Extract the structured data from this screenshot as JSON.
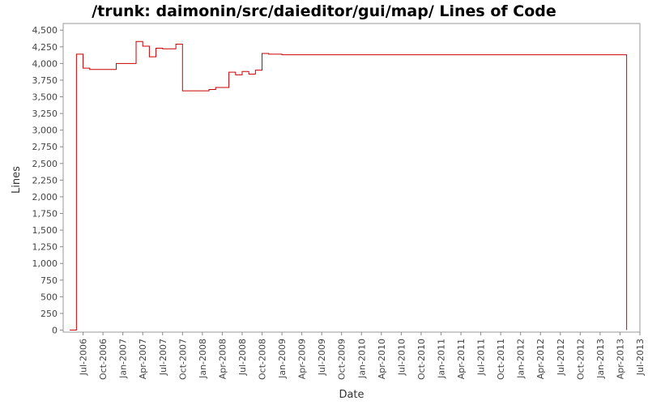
{
  "chart_data": {
    "type": "line",
    "title": "/trunk: daimonin/src/daieditor/gui/map/ Lines of Code",
    "x_label": "Date",
    "y_label": "Lines",
    "color": "#cc0000",
    "step": true,
    "x": [
      "2006-05",
      "2006-06",
      "2006-07",
      "2006-08",
      "2006-12",
      "2007-03",
      "2007-04",
      "2007-05",
      "2007-06",
      "2007-07",
      "2007-09",
      "2007-10",
      "2008-02",
      "2008-03",
      "2008-05",
      "2008-06",
      "2008-07",
      "2008-08",
      "2008-09",
      "2008-10",
      "2008-11",
      "2009-01",
      "2013-05"
    ],
    "values": [
      0,
      4140,
      3930,
      3910,
      4000,
      4330,
      4260,
      4100,
      4230,
      4220,
      4290,
      3590,
      3610,
      3640,
      3870,
      3830,
      3880,
      3840,
      3900,
      4150,
      4140,
      4130,
      0
    ],
    "xlim": [
      "2006-04",
      "2013-07"
    ],
    "xticks": [
      {
        "value": "2006-07",
        "label": "Jul-2006"
      },
      {
        "value": "2006-10",
        "label": "Oct-2006"
      },
      {
        "value": "2007-01",
        "label": "Jan-2007"
      },
      {
        "value": "2007-04",
        "label": "Apr-2007"
      },
      {
        "value": "2007-07",
        "label": "Jul-2007"
      },
      {
        "value": "2007-10",
        "label": "Oct-2007"
      },
      {
        "value": "2008-01",
        "label": "Jan-2008"
      },
      {
        "value": "2008-04",
        "label": "Apr-2008"
      },
      {
        "value": "2008-07",
        "label": "Jul-2008"
      },
      {
        "value": "2008-10",
        "label": "Oct-2008"
      },
      {
        "value": "2009-01",
        "label": "Jan-2009"
      },
      {
        "value": "2009-04",
        "label": "Apr-2009"
      },
      {
        "value": "2009-07",
        "label": "Jul-2009"
      },
      {
        "value": "2009-10",
        "label": "Oct-2009"
      },
      {
        "value": "2010-01",
        "label": "Jan-2010"
      },
      {
        "value": "2010-04",
        "label": "Apr-2010"
      },
      {
        "value": "2010-07",
        "label": "Jul-2010"
      },
      {
        "value": "2010-10",
        "label": "Oct-2010"
      },
      {
        "value": "2011-01",
        "label": "Jan-2011"
      },
      {
        "value": "2011-04",
        "label": "Apr-2011"
      },
      {
        "value": "2011-07",
        "label": "Jul-2011"
      },
      {
        "value": "2011-10",
        "label": "Oct-2011"
      },
      {
        "value": "2012-01",
        "label": "Jan-2012"
      },
      {
        "value": "2012-04",
        "label": "Apr-2012"
      },
      {
        "value": "2012-07",
        "label": "Jul-2012"
      },
      {
        "value": "2012-10",
        "label": "Oct-2012"
      },
      {
        "value": "2013-01",
        "label": "Jan-2013"
      },
      {
        "value": "2013-04",
        "label": "Apr-2013"
      },
      {
        "value": "2013-07",
        "label": "Jul-2013"
      }
    ],
    "ylim": [
      -30,
      4600
    ],
    "yticks": [
      0,
      250,
      500,
      750,
      {
        "value": 1000,
        "label": "1,000"
      },
      {
        "value": 1250,
        "label": "1,250"
      },
      {
        "value": 1500,
        "label": "1,500"
      },
      {
        "value": 1750,
        "label": "1,750"
      },
      {
        "value": 2000,
        "label": "2,000"
      },
      {
        "value": 2250,
        "label": "2,250"
      },
      {
        "value": 2500,
        "label": "2,500"
      },
      {
        "value": 2750,
        "label": "2,750"
      },
      {
        "value": 3000,
        "label": "3,000"
      },
      {
        "value": 3250,
        "label": "3,250"
      },
      {
        "value": 3500,
        "label": "3,500"
      },
      {
        "value": 3750,
        "label": "3,750"
      },
      {
        "value": 4000,
        "label": "4,000"
      },
      {
        "value": 4250,
        "label": "4,250"
      },
      {
        "value": 4500,
        "label": "4,500"
      }
    ]
  }
}
